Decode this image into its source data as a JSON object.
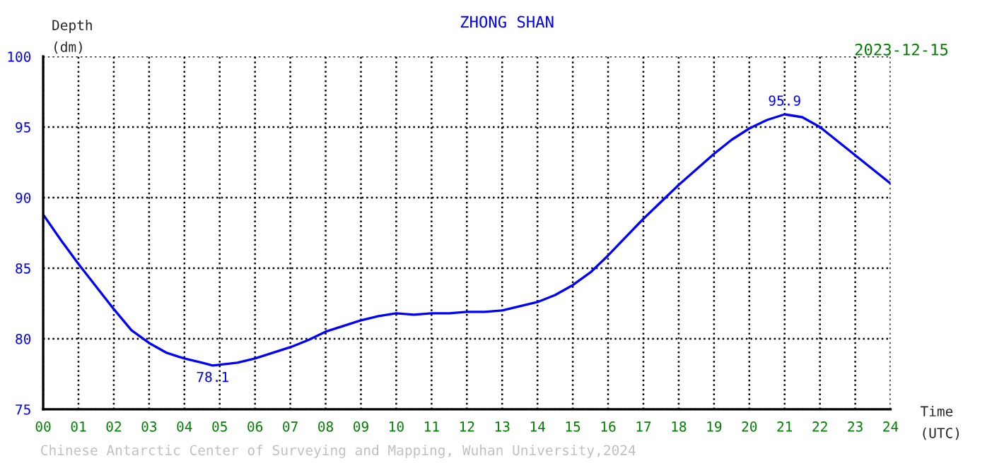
{
  "chart_data": {
    "type": "line",
    "title": "ZHONG SHAN",
    "subtitle": "2023-12-15",
    "xlabel": "Time\n(UTC)",
    "ylabel": "Depth\n(dm)",
    "x": [
      0,
      0.5,
      1,
      1.5,
      2,
      2.5,
      3,
      3.5,
      4,
      4.5,
      4.8,
      5.5,
      6,
      6.5,
      7,
      7.5,
      8,
      8.5,
      9,
      9.5,
      10,
      10.5,
      11,
      11.5,
      12,
      12.5,
      13,
      13.5,
      14,
      14.5,
      15,
      15.5,
      16,
      16.5,
      17,
      17.5,
      18,
      18.5,
      19,
      19.5,
      20,
      20.5,
      21,
      21.5,
      22,
      22.5,
      23,
      23.5,
      24
    ],
    "series": [
      {
        "color": "#0000ff",
        "values": [
          88.8,
          87.0,
          85.3,
          83.7,
          82.1,
          80.6,
          79.7,
          79.0,
          78.6,
          78.3,
          78.1,
          78.3,
          78.6,
          79.0,
          79.4,
          79.9,
          80.5,
          80.9,
          81.3,
          81.6,
          81.8,
          81.7,
          81.8,
          81.8,
          81.9,
          81.9,
          82.0,
          82.3,
          82.6,
          83.1,
          83.8,
          84.7,
          85.9,
          87.2,
          88.5,
          89.7,
          90.9,
          92.0,
          93.1,
          94.1,
          94.9,
          95.5,
          95.9,
          95.7,
          95.0,
          94.0,
          93.0,
          92.0,
          91.0
        ]
      }
    ],
    "annotations": [
      {
        "text": "78.1",
        "x": 4.8,
        "y": 78.1
      },
      {
        "text": "95.9",
        "x": 21,
        "y": 95.9
      },
      "Chinese Antarctic Center of Surveying and Mapping, Wuhan University,2024"
    ],
    "xlim": [
      0,
      24
    ],
    "xticks": [
      {
        "value": 0,
        "label": "00"
      },
      {
        "value": 1,
        "label": "01"
      },
      {
        "value": 2,
        "label": "02"
      },
      {
        "value": 3,
        "label": "03"
      },
      {
        "value": 4,
        "label": "04"
      },
      {
        "value": 5,
        "label": "05"
      },
      {
        "value": 6,
        "label": "06"
      },
      {
        "value": 7,
        "label": "07"
      },
      {
        "value": 8,
        "label": "08"
      },
      {
        "value": 9,
        "label": "09"
      },
      {
        "value": 10,
        "label": "10"
      },
      {
        "value": 11,
        "label": "11"
      },
      {
        "value": 12,
        "label": "12"
      },
      {
        "value": 13,
        "label": "13"
      },
      {
        "value": 14,
        "label": "14"
      },
      {
        "value": 15,
        "label": "15"
      },
      {
        "value": 16,
        "label": "16"
      },
      {
        "value": 17,
        "label": "17"
      },
      {
        "value": 18,
        "label": "18"
      },
      {
        "value": 19,
        "label": "19"
      },
      {
        "value": 20,
        "label": "20"
      },
      {
        "value": 21,
        "label": "21"
      },
      {
        "value": 22,
        "label": "22"
      },
      {
        "value": 23,
        "label": "23"
      },
      {
        "value": 24,
        "label": "24"
      }
    ],
    "ylim": [
      75,
      100
    ],
    "yticks": [
      75,
      80,
      85,
      90,
      95,
      100
    ],
    "grid": true,
    "line_style": "solid",
    "marker": "none"
  }
}
